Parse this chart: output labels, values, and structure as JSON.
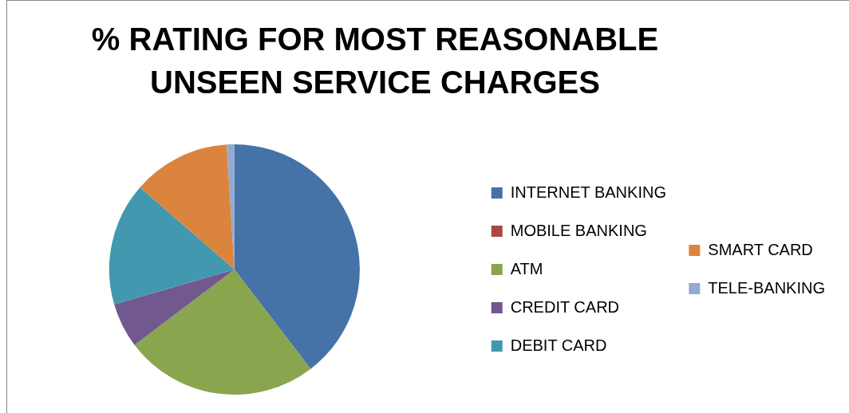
{
  "chart_data": {
    "type": "pie",
    "title": "% RATING FOR MOST REASONABLE UNSEEN SERVICE CHARGES",
    "categories": [
      "INTERNET BANKING",
      "MOBILE BANKING",
      "ATM",
      "CREDIT CARD",
      "DEBIT CARD",
      "SMART CARD",
      "TELE-BANKING"
    ],
    "values": [
      39.6,
      0,
      25.1,
      5.8,
      15.9,
      12.6,
      1.0
    ],
    "colors": [
      "#4572a7",
      "#aa4643",
      "#89a54e",
      "#71588f",
      "#4198af",
      "#db843d",
      "#93a9cf"
    ],
    "legend": "right"
  }
}
